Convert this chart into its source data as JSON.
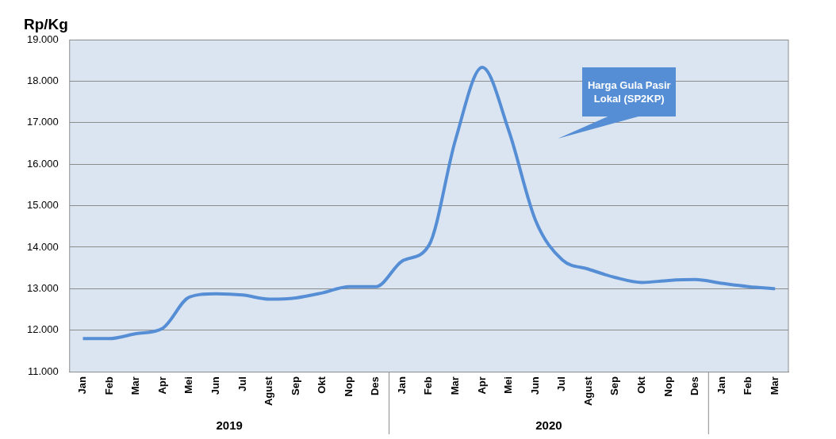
{
  "chart_data": {
    "type": "line",
    "ylabel": "Rp/Kg",
    "categories": [
      "Jan",
      "Feb",
      "Mar",
      "Apr",
      "Mei",
      "Jun",
      "Jul",
      "Agust",
      "Sep",
      "Okt",
      "Nop",
      "Des",
      "Jan",
      "Feb",
      "Mar",
      "Apr",
      "Mei",
      "Jun",
      "Jul",
      "Agust",
      "Sep",
      "Okt",
      "Nop",
      "Des",
      "Jan",
      "Feb",
      "Mar"
    ],
    "series": [
      {
        "name": "Harga Gula Pasir Lokal (SP2KP)",
        "color": "#558ed5",
        "values": [
          11800,
          11800,
          11920,
          12050,
          12800,
          12880,
          12850,
          12750,
          12780,
          12900,
          13050,
          13050,
          13670,
          14050,
          16600,
          18330,
          16800,
          14650,
          13700,
          13470,
          13270,
          13150,
          13200,
          13220,
          13130,
          13050,
          13000
        ]
      }
    ],
    "ylim": [
      11000,
      19000
    ],
    "yticks": [
      {
        "value": 11000,
        "label": "11.000"
      },
      {
        "value": 12000,
        "label": "12.000"
      },
      {
        "value": 13000,
        "label": "13.000"
      },
      {
        "value": 14000,
        "label": "14.000"
      },
      {
        "value": 15000,
        "label": "15.000"
      },
      {
        "value": 16000,
        "label": "16.000"
      },
      {
        "value": 17000,
        "label": "17.000"
      },
      {
        "value": 18000,
        "label": "18.000"
      },
      {
        "value": 19000,
        "label": "19.000"
      }
    ],
    "grid": "y",
    "legend": false,
    "marker": "none",
    "line_style": "solid",
    "annotations": [
      "2019",
      "2020"
    ]
  }
}
